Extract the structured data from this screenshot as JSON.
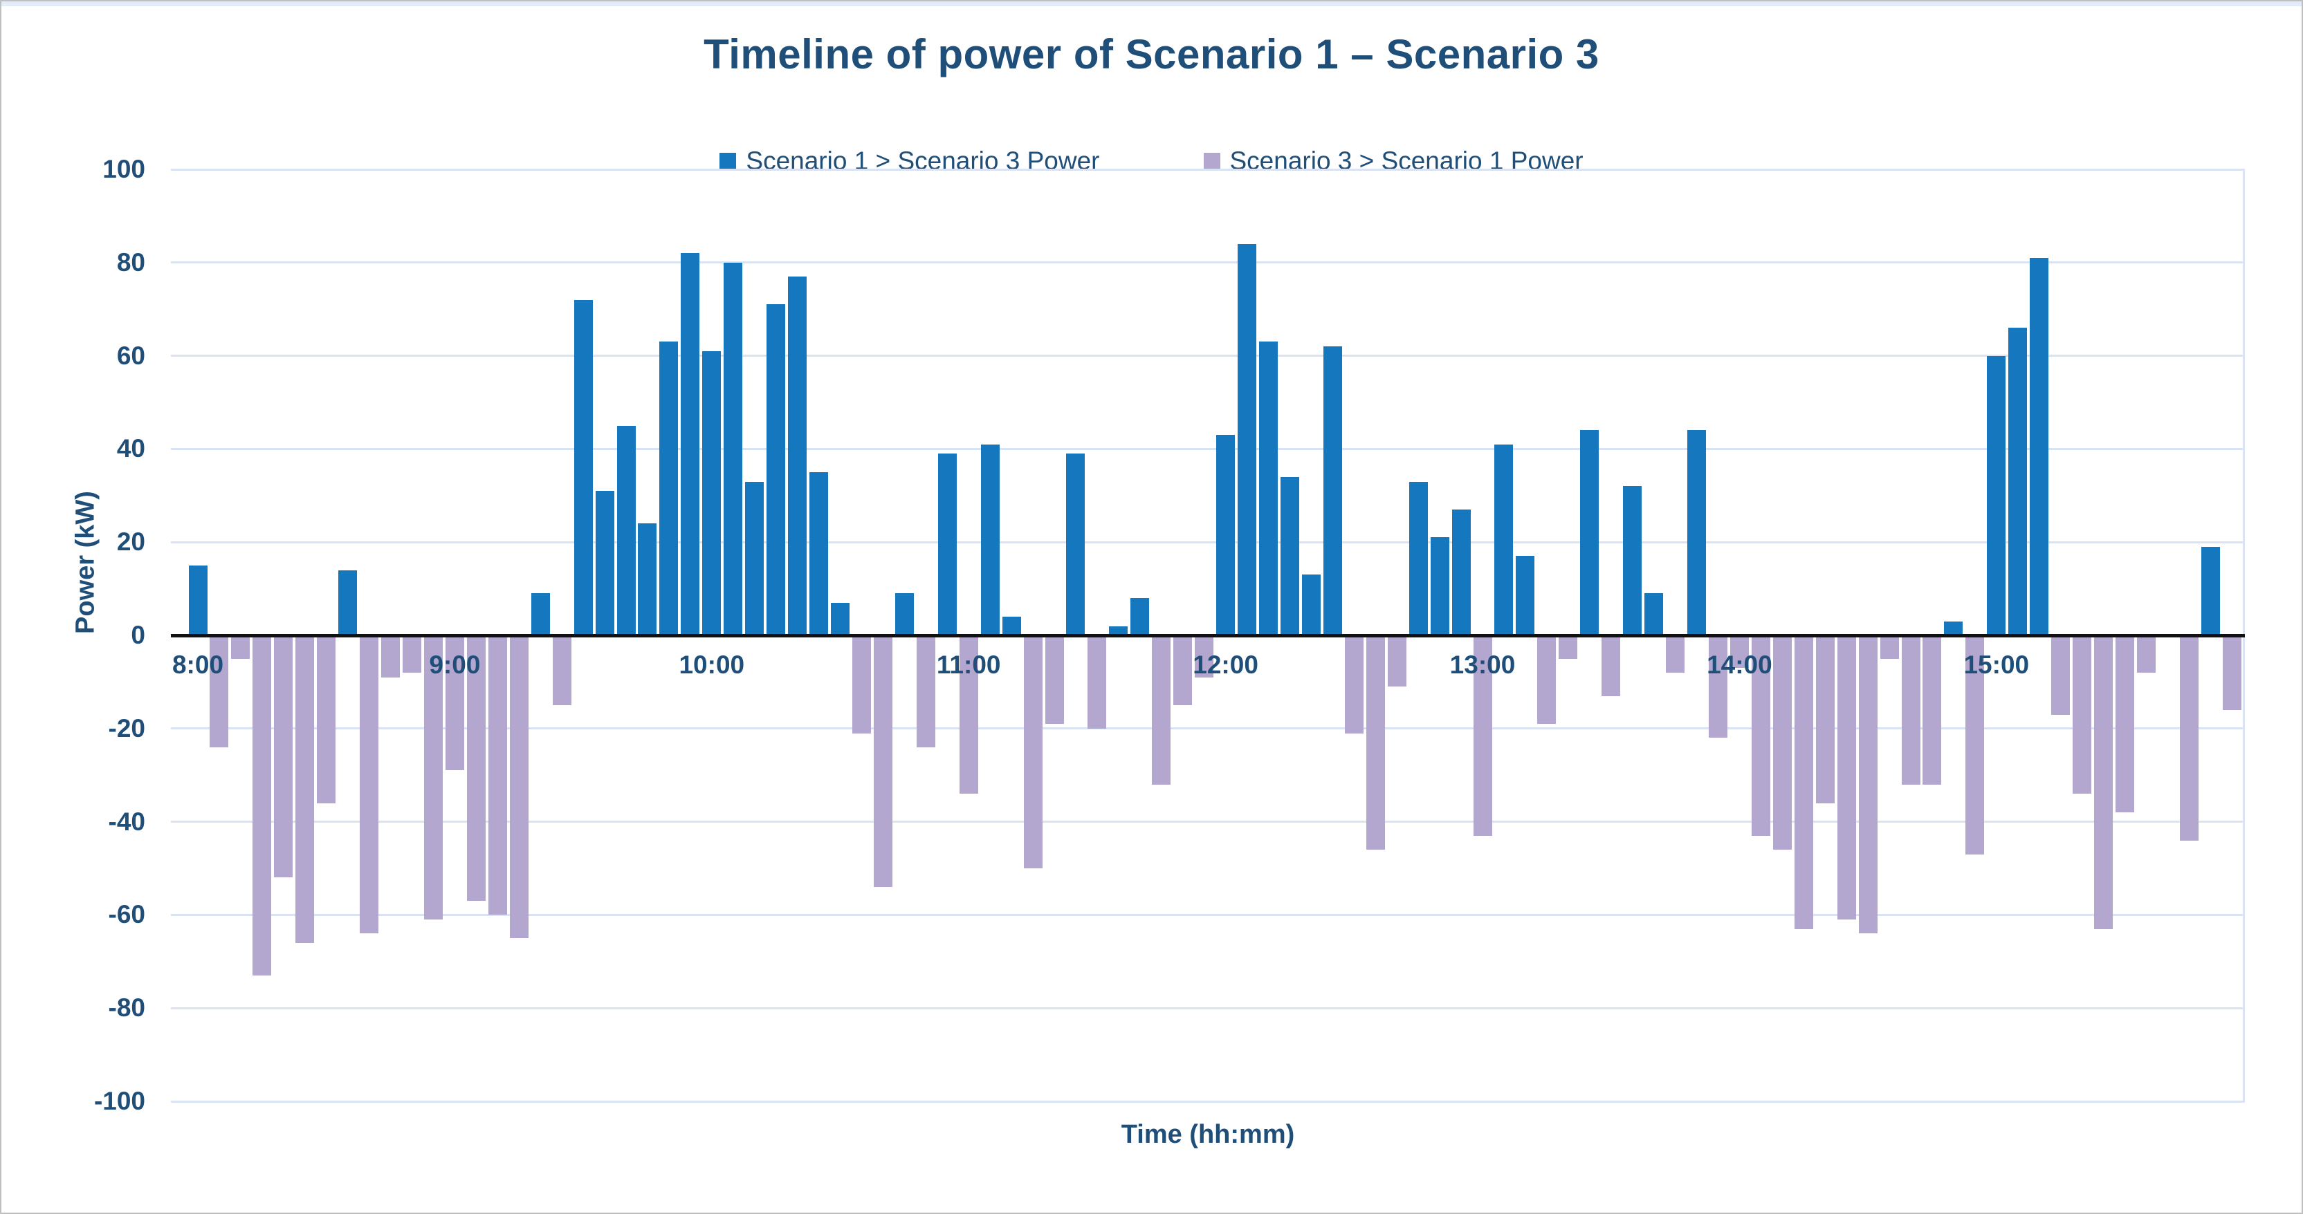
{
  "chart_data": {
    "type": "bar",
    "title": "Timeline of power of Scenario 1 – Scenario 3",
    "xlabel": "Time (hh:mm)",
    "ylabel": "Power  (kW)",
    "ylim": [
      -100,
      100
    ],
    "ytick_step": 20,
    "grid": true,
    "legend_position": "top-center",
    "ytick_labels": [
      "100",
      "80",
      "60",
      "40",
      "20",
      "0",
      "-20",
      "-40",
      "-60",
      "-80",
      "-100"
    ],
    "xtick_labels": [
      "8:00",
      "9:00",
      "10:00",
      "11:00",
      "12:00",
      "13:00",
      "14:00",
      "15:00"
    ],
    "legend": [
      {
        "name": "Scenario 1 > Scenario 3 Power",
        "color": "#1577BE"
      },
      {
        "name": "Scenario 3 > Scenario 1 Power",
        "color": "#B3A6CF"
      }
    ],
    "bar_colors": {
      "positive": "#1577BE",
      "negative": "#B3A6CF"
    },
    "text_color": "#1F4E79",
    "gridline_color": "#DAE3F3",
    "interval_minutes": 5,
    "times": [
      "8:00",
      "8:05",
      "8:10",
      "8:15",
      "8:20",
      "8:25",
      "8:30",
      "8:35",
      "8:40",
      "8:45",
      "8:50",
      "8:55",
      "9:00",
      "9:05",
      "9:10",
      "9:15",
      "9:20",
      "9:25",
      "9:30",
      "9:35",
      "9:40",
      "9:45",
      "9:50",
      "9:55",
      "10:00",
      "10:05",
      "10:10",
      "10:15",
      "10:20",
      "10:25",
      "10:30",
      "10:35",
      "10:40",
      "10:45",
      "10:50",
      "10:55",
      "11:00",
      "11:05",
      "11:10",
      "11:15",
      "11:20",
      "11:25",
      "11:30",
      "11:35",
      "11:40",
      "11:45",
      "11:50",
      "11:55",
      "12:00",
      "12:05",
      "12:10",
      "12:15",
      "12:20",
      "12:25",
      "12:30",
      "12:35",
      "12:40",
      "12:45",
      "12:50",
      "12:55",
      "13:00",
      "13:05",
      "13:10",
      "13:15",
      "13:20",
      "13:25",
      "13:30",
      "13:35",
      "13:40",
      "13:45",
      "13:50",
      "13:55",
      "14:00",
      "14:05",
      "14:10",
      "14:15",
      "14:20",
      "14:25",
      "14:30",
      "14:35",
      "14:40",
      "14:45",
      "14:50",
      "14:55",
      "15:00",
      "15:05",
      "15:10",
      "15:15",
      "15:20",
      "15:25",
      "15:30",
      "15:35",
      "15:40",
      "15:45",
      "15:50",
      "15:55"
    ],
    "values": [
      15,
      -24,
      -5,
      -73,
      -52,
      -66,
      -36,
      14,
      -64,
      -9,
      -8,
      -61,
      -29,
      -57,
      -60,
      -65,
      9,
      -15,
      72,
      31,
      45,
      24,
      63,
      82,
      61,
      80,
      33,
      71,
      77,
      35,
      7,
      -21,
      -54,
      9,
      -24,
      39,
      -34,
      41,
      4,
      -50,
      -19,
      39,
      -20,
      2,
      8,
      -32,
      -15,
      -9,
      43,
      84,
      63,
      34,
      13,
      62,
      -21,
      -46,
      -11,
      33,
      21,
      27,
      -43,
      41,
      17,
      -19,
      -5,
      44,
      -13,
      32,
      9,
      -8,
      44,
      -22,
      -7,
      -43,
      -46,
      -63,
      -36,
      -61,
      -64,
      -5,
      -32,
      -32,
      3,
      -47,
      60,
      66,
      81,
      -17,
      -34,
      -63,
      -38,
      -8,
      0,
      -44,
      19,
      -16
    ]
  }
}
